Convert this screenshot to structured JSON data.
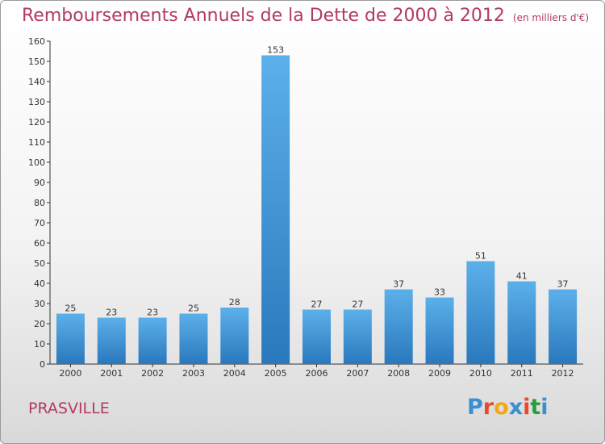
{
  "header": {
    "title": "Remboursements Annuels de la Dette de 2000 à 2012",
    "unit": "(en milliers d'€)"
  },
  "footer": {
    "commune": "PRASVILLE",
    "logo_text": "Proxiti",
    "logo_colors": [
      "#3a8fd1",
      "#e94a2e",
      "#f2a81b",
      "#3a8fd1",
      "#e94a2e",
      "#2a9d3e",
      "#3a8fd1"
    ]
  },
  "chart_data": {
    "type": "bar",
    "categories": [
      "2000",
      "2001",
      "2002",
      "2003",
      "2004",
      "2005",
      "2006",
      "2007",
      "2008",
      "2009",
      "2010",
      "2011",
      "2012"
    ],
    "values": [
      25,
      23,
      23,
      25,
      28,
      153,
      27,
      27,
      37,
      33,
      51,
      41,
      37
    ],
    "ylim": [
      0,
      160
    ],
    "yticks": [
      0,
      10,
      20,
      30,
      40,
      50,
      60,
      70,
      80,
      90,
      100,
      110,
      120,
      130,
      140,
      150,
      160
    ],
    "grid": false,
    "bar_color": "#3f93d8",
    "bar_color_light": "#5cb0ea",
    "bar_color_dark": "#2a78bd",
    "title_color": "#b23a63"
  }
}
